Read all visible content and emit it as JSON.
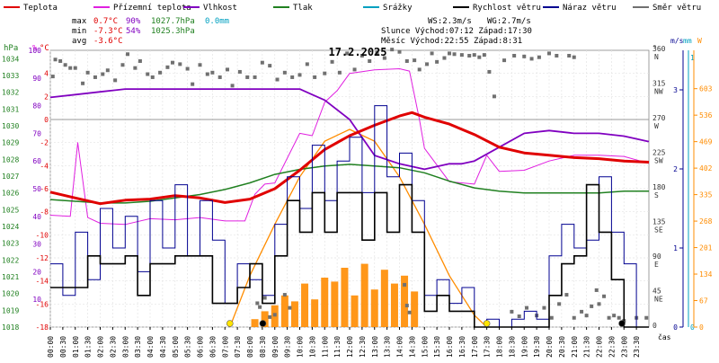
{
  "chart_data": {
    "type": "line",
    "title": "17.2.2025",
    "legend": [
      {
        "label": "Teplota",
        "color": "#e00000"
      },
      {
        "label": "Přízemní teplota",
        "color": "#e020e0"
      },
      {
        "label": "Vlhkost",
        "color": "#8000c0"
      },
      {
        "label": "Tlak",
        "color": "#208020"
      },
      {
        "label": "Srážky",
        "color": "#00a0c0"
      },
      {
        "label": "Rychlost větru",
        "color": "#000000"
      },
      {
        "label": "Náraz větru",
        "color": "#000090"
      },
      {
        "label": "Směr větru",
        "color": "#707070"
      }
    ],
    "stats": {
      "max_label": "max",
      "max_temp": "0.7°C",
      "max_hum": "90%",
      "max_press": "1027.7hPa",
      "rain": "0.0mm",
      "min_label": "min",
      "min_temp": "-7.3°C",
      "min_hum": "54%",
      "min_press": "1025.3hPa",
      "avg_label": "avg",
      "avg_temp": "-3.6°C",
      "ws": "WS:2.3m/s",
      "wg": "WG:2.7m/s",
      "sun": "Slunce Východ:07:12  Západ:17:30",
      "moon": "Měsíc  Východ:22:55  Západ:8:31"
    },
    "axes": {
      "hpa": {
        "label": "hPa",
        "ticks": [
          "1034",
          "1033",
          "1032",
          "1031",
          "1030",
          "1029",
          "1028",
          "1027",
          "1026",
          "1025",
          "1024",
          "1023",
          "1022",
          "1021",
          "1020",
          "1019",
          "1018"
        ]
      },
      "hum": {
        "label": "%",
        "ticks": [
          "100",
          "90",
          "80",
          "70",
          "60",
          "50",
          "40",
          "30",
          "20",
          "10"
        ]
      },
      "temp": {
        "label": "°C",
        "ticks": [
          "4",
          "2",
          "0",
          "-2",
          "-4",
          "-6",
          "-8",
          "-10",
          "-12",
          "-14",
          "-16",
          "-18"
        ]
      },
      "dir": {
        "label": "°",
        "ticks": [
          {
            "v": "360",
            "d": "N"
          },
          {
            "v": "315",
            "d": "NW"
          },
          {
            "v": "270",
            "d": "W"
          },
          {
            "v": "225",
            "d": "SW"
          },
          {
            "v": "180",
            "d": "S"
          },
          {
            "v": "135",
            "d": "SE"
          },
          {
            "v": "90",
            "d": "E"
          },
          {
            "v": "45",
            "d": "NE"
          },
          {
            "v": "0",
            "d": ""
          }
        ]
      },
      "ms": {
        "label": "m/s",
        "ticks": [
          "3",
          "2",
          "1",
          "0"
        ]
      },
      "mm": {
        "label": "mm",
        "ticks": [
          "1",
          "0"
        ]
      },
      "w": {
        "label": "W",
        "ticks": [
          "603",
          "536",
          "469",
          "402",
          "335",
          "268",
          "201",
          "134",
          "67",
          "0"
        ]
      },
      "time": {
        "label": "čas",
        "ticks": [
          "00:00",
          "00:30",
          "01:00",
          "01:30",
          "02:00",
          "02:30",
          "03:00",
          "03:30",
          "04:00",
          "04:30",
          "05:00",
          "05:30",
          "06:00",
          "06:30",
          "07:00",
          "07:30",
          "08:00",
          "08:30",
          "09:00",
          "09:30",
          "10:00",
          "10:30",
          "11:00",
          "11:30",
          "12:00",
          "12:30",
          "13:00",
          "13:30",
          "14:00",
          "14:30",
          "15:00",
          "15:30",
          "16:00",
          "16:30",
          "17:00",
          "17:30",
          "18:00",
          "18:30",
          "19:00",
          "19:30",
          "20:00",
          "20:30",
          "21:00",
          "21:30",
          "22:00",
          "22:30",
          "23:00",
          "23:30"
        ]
      }
    },
    "series": [
      {
        "name": "Teplota",
        "unit": "°C",
        "hours": [
          0,
          1,
          2,
          3,
          4,
          5,
          6,
          7,
          8,
          9,
          10,
          11,
          12,
          13,
          14,
          14.5,
          15,
          16,
          17,
          18,
          19,
          20,
          21,
          22,
          23,
          24
        ],
        "values": [
          -6.3,
          -6.8,
          -7.3,
          -7.0,
          -6.9,
          -6.6,
          -6.8,
          -7.2,
          -6.9,
          -6.0,
          -4.4,
          -2.6,
          -1.4,
          -0.5,
          0.3,
          0.6,
          0.2,
          -0.4,
          -1.3,
          -2.4,
          -2.9,
          -3.1,
          -3.3,
          -3.4,
          -3.6,
          -3.7
        ]
      },
      {
        "name": "Přízemní teplota",
        "unit": "°C",
        "hours": [
          0,
          0.8,
          1.1,
          1.5,
          2,
          3,
          4,
          5,
          6,
          7,
          7.8,
          8.2,
          8.6,
          9,
          10,
          10.5,
          11,
          11.5,
          12,
          13,
          14,
          14.4,
          14.8,
          15,
          16,
          17,
          17.5,
          18,
          19,
          20,
          21,
          22,
          23,
          24
        ],
        "values": [
          -8.3,
          -8.4,
          -2.0,
          -8.5,
          -9.0,
          -9.1,
          -8.6,
          -8.7,
          -8.5,
          -8.8,
          -8.8,
          -6.5,
          -5.6,
          -5.5,
          -1.2,
          -1.4,
          1.5,
          2.5,
          4.0,
          4.3,
          4.4,
          4.2,
          0.0,
          -2.5,
          -5.4,
          -5.6,
          -3.1,
          -4.5,
          -4.4,
          -3.6,
          -3.1,
          -3.1,
          -3.2,
          -3.8
        ]
      },
      {
        "name": "Vlhkost",
        "unit": "%",
        "hours": [
          0,
          1,
          2,
          3,
          4,
          5,
          6,
          7,
          8,
          9,
          10,
          10.5,
          11,
          12,
          13,
          14,
          15,
          16,
          16.5,
          17,
          18,
          19,
          20,
          21,
          22,
          23,
          24
        ],
        "values": [
          83,
          84,
          85,
          86,
          86,
          86,
          86,
          86,
          86,
          86,
          86,
          84,
          82,
          75,
          62,
          59,
          57,
          59,
          59,
          60,
          65,
          70,
          71,
          70,
          70,
          69,
          67
        ]
      },
      {
        "name": "Tlak",
        "unit": "hPa",
        "hours": [
          0,
          1,
          2,
          3,
          4,
          5,
          6,
          7,
          8,
          9,
          10,
          11,
          12,
          13,
          14,
          15,
          16,
          17,
          18,
          19,
          20,
          21,
          22,
          23,
          24
        ],
        "values": [
          1025.6,
          1025.5,
          1025.4,
          1025.4,
          1025.5,
          1025.7,
          1025.9,
          1026.2,
          1026.6,
          1027.1,
          1027.4,
          1027.6,
          1027.7,
          1027.6,
          1027.5,
          1027.2,
          1026.7,
          1026.3,
          1026.1,
          1026.0,
          1026.0,
          1026.0,
          1026.0,
          1026.1,
          1026.1
        ]
      },
      {
        "name": "Rychlost větru",
        "unit": "m/s",
        "hours": [
          0,
          1,
          1.5,
          2,
          3,
          3.5,
          4,
          5,
          6,
          6.5,
          7,
          7.5,
          8,
          8.5,
          9,
          9.5,
          10,
          10.5,
          11,
          11.5,
          12,
          12.5,
          13,
          13.5,
          14,
          14.5,
          15,
          15.5,
          16,
          17,
          18,
          19,
          20,
          20.5,
          21,
          21.5,
          22,
          22.5,
          23,
          24
        ],
        "values": [
          0.5,
          0.5,
          0.9,
          0.8,
          0.9,
          0.4,
          0.8,
          0.9,
          0.9,
          0.3,
          0.3,
          0.5,
          0.8,
          0.3,
          0.9,
          1.6,
          1.2,
          1.7,
          1.2,
          1.7,
          1.7,
          1.1,
          1.7,
          1.2,
          1.8,
          1.2,
          0.2,
          0.4,
          0.2,
          0.0,
          0.0,
          0.0,
          0.4,
          0.8,
          0.9,
          1.8,
          1.2,
          0.6,
          0.0,
          0.0
        ]
      },
      {
        "name": "Náraz větru",
        "unit": "m/s",
        "hours": [
          0,
          0.5,
          1,
          1.5,
          2,
          2.5,
          3,
          3.5,
          4,
          4.5,
          5,
          5.5,
          6,
          6.5,
          7,
          7.5,
          8,
          8.5,
          9,
          9.5,
          10,
          10.5,
          11,
          11.5,
          12,
          12.5,
          13,
          13.5,
          14,
          14.5,
          15,
          15.5,
          16,
          16.5,
          17,
          17.5,
          18,
          18.5,
          19,
          19.5,
          20,
          20.5,
          21,
          21.5,
          22,
          22.5,
          23,
          23.5,
          24
        ],
        "values": [
          0.8,
          0.4,
          1.2,
          0.6,
          1.5,
          1.0,
          1.4,
          0.7,
          1.6,
          1.0,
          1.8,
          0.9,
          1.6,
          1.1,
          0.3,
          0.8,
          0.6,
          0.4,
          1.3,
          1.9,
          1.5,
          2.3,
          1.6,
          2.1,
          2.4,
          1.7,
          2.8,
          1.9,
          2.2,
          1.6,
          0.4,
          0.6,
          0.3,
          0.5,
          0.0,
          0.1,
          0.0,
          0.1,
          0.2,
          0.1,
          0.9,
          1.3,
          1.0,
          1.1,
          1.9,
          1.2,
          0.8,
          0.0,
          0.0
        ]
      },
      {
        "name": "Směr větru",
        "unit": "°",
        "type": "scatter",
        "values": [
          [
            0.1,
            326
          ],
          [
            0.2,
            348
          ],
          [
            0.4,
            346
          ],
          [
            0.6,
            341
          ],
          [
            0.8,
            337
          ],
          [
            1.0,
            337
          ],
          [
            1.3,
            317
          ],
          [
            1.5,
            331
          ],
          [
            1.8,
            325
          ],
          [
            2.1,
            329
          ],
          [
            2.3,
            334
          ],
          [
            2.6,
            321
          ],
          [
            2.9,
            341
          ],
          [
            3.1,
            355
          ],
          [
            3.4,
            337
          ],
          [
            3.6,
            346
          ],
          [
            3.9,
            329
          ],
          [
            4.1,
            325
          ],
          [
            4.4,
            331
          ],
          [
            4.7,
            338
          ],
          [
            4.9,
            344
          ],
          [
            5.2,
            342
          ],
          [
            5.5,
            336
          ],
          [
            5.7,
            316
          ],
          [
            6.0,
            341
          ],
          [
            6.3,
            329
          ],
          [
            6.5,
            331
          ],
          [
            6.8,
            325
          ],
          [
            7.1,
            335
          ],
          [
            7.3,
            314
          ],
          [
            7.6,
            332
          ],
          [
            7.9,
            325
          ],
          [
            8.2,
            325
          ],
          [
            8.5,
            344
          ],
          [
            8.8,
            340
          ],
          [
            9.1,
            322
          ],
          [
            9.4,
            331
          ],
          [
            9.7,
            325
          ],
          [
            10.0,
            328
          ],
          [
            10.3,
            342
          ],
          [
            10.6,
            325
          ],
          [
            11.0,
            330
          ],
          [
            11.3,
            345
          ],
          [
            11.6,
            331
          ],
          [
            11.9,
            356
          ],
          [
            12.2,
            335
          ],
          [
            12.5,
            353
          ],
          [
            12.8,
            346
          ],
          [
            13.1,
            357
          ],
          [
            13.4,
            350
          ],
          [
            13.7,
            361
          ],
          [
            14.0,
            358
          ],
          [
            14.3,
            346
          ],
          [
            14.6,
            347
          ],
          [
            14.8,
            335
          ],
          [
            15.1,
            342
          ],
          [
            15.3,
            356
          ],
          [
            15.5,
            345
          ],
          [
            15.8,
            350
          ],
          [
            16.0,
            356
          ],
          [
            16.2,
            355
          ],
          [
            16.5,
            354
          ],
          [
            16.8,
            353
          ],
          [
            17.0,
            354
          ],
          [
            17.2,
            351
          ],
          [
            17.4,
            354
          ],
          [
            17.6,
            332
          ],
          [
            17.8,
            300
          ],
          [
            18.2,
            347
          ],
          [
            18.6,
            353
          ],
          [
            19.0,
            352
          ],
          [
            19.3,
            349
          ],
          [
            19.6,
            351
          ],
          [
            20.0,
            356
          ],
          [
            20.3,
            353
          ],
          [
            20.8,
            353
          ],
          [
            21.0,
            351
          ],
          [
            8.3,
            31
          ],
          [
            8.4,
            26
          ],
          [
            8.6,
            38
          ],
          [
            8.8,
            13
          ],
          [
            9.0,
            16
          ],
          [
            9.4,
            42
          ],
          [
            9.6,
            25
          ],
          [
            14.2,
            55
          ],
          [
            14.3,
            28
          ],
          [
            14.4,
            19
          ],
          [
            18.5,
            20
          ],
          [
            18.8,
            14
          ],
          [
            19.1,
            25
          ],
          [
            19.5,
            15
          ],
          [
            19.8,
            25
          ],
          [
            20.1,
            12
          ],
          [
            20.4,
            30
          ],
          [
            20.7,
            42
          ],
          [
            21.0,
            12
          ],
          [
            21.3,
            20
          ],
          [
            21.5,
            15
          ],
          [
            21.7,
            27
          ],
          [
            21.9,
            48
          ],
          [
            22.0,
            30
          ],
          [
            22.2,
            40
          ],
          [
            22.4,
            12
          ],
          [
            22.6,
            15
          ],
          [
            22.8,
            12
          ],
          [
            23.0,
            8
          ],
          [
            23.5,
            12
          ],
          [
            23.9,
            12
          ]
        ]
      },
      {
        "name": "Srážky",
        "unit": "mm",
        "values": [
          0
        ]
      }
    ],
    "solar_radiation": {
      "name": "Sluneční záření",
      "unit": "W",
      "hours": [
        7.2,
        8,
        9,
        10,
        11,
        12,
        13,
        14,
        15,
        16,
        17,
        17.5
      ],
      "theoretical": [
        0,
        130,
        260,
        380,
        470,
        500,
        470,
        380,
        260,
        130,
        30,
        0
      ],
      "measured_hours": [
        8.2,
        8.6,
        9.0,
        9.4,
        9.8,
        10.2,
        10.6,
        11.0,
        11.4,
        11.8,
        12.2,
        12.6,
        13.0,
        13.4,
        13.8,
        14.2,
        14.6
      ],
      "measured": [
        20,
        40,
        55,
        80,
        65,
        110,
        70,
        125,
        115,
        150,
        80,
        160,
        95,
        145,
        110,
        130,
        90
      ]
    },
    "events": [
      {
        "name": "Slunce východ",
        "hour": 7.2,
        "color": "#ffe400"
      },
      {
        "name": "Slunce západ",
        "hour": 17.5,
        "color": "#ffe400"
      },
      {
        "name": "Měsíc západ",
        "hour": 8.52,
        "color": "#000000"
      },
      {
        "name": "Měsíc východ",
        "hour": 22.92,
        "color": "#000000"
      }
    ],
    "xlim": [
      0,
      24
    ],
    "temp_lim": [
      -18,
      6
    ],
    "hum_lim": [
      0,
      100
    ],
    "press_lim": [
      1018,
      1034.5
    ],
    "wind_lim": [
      0,
      3.5
    ],
    "dir_lim": [
      0,
      360
    ],
    "rad_lim": [
      0,
      700
    ],
    "grid": true
  }
}
